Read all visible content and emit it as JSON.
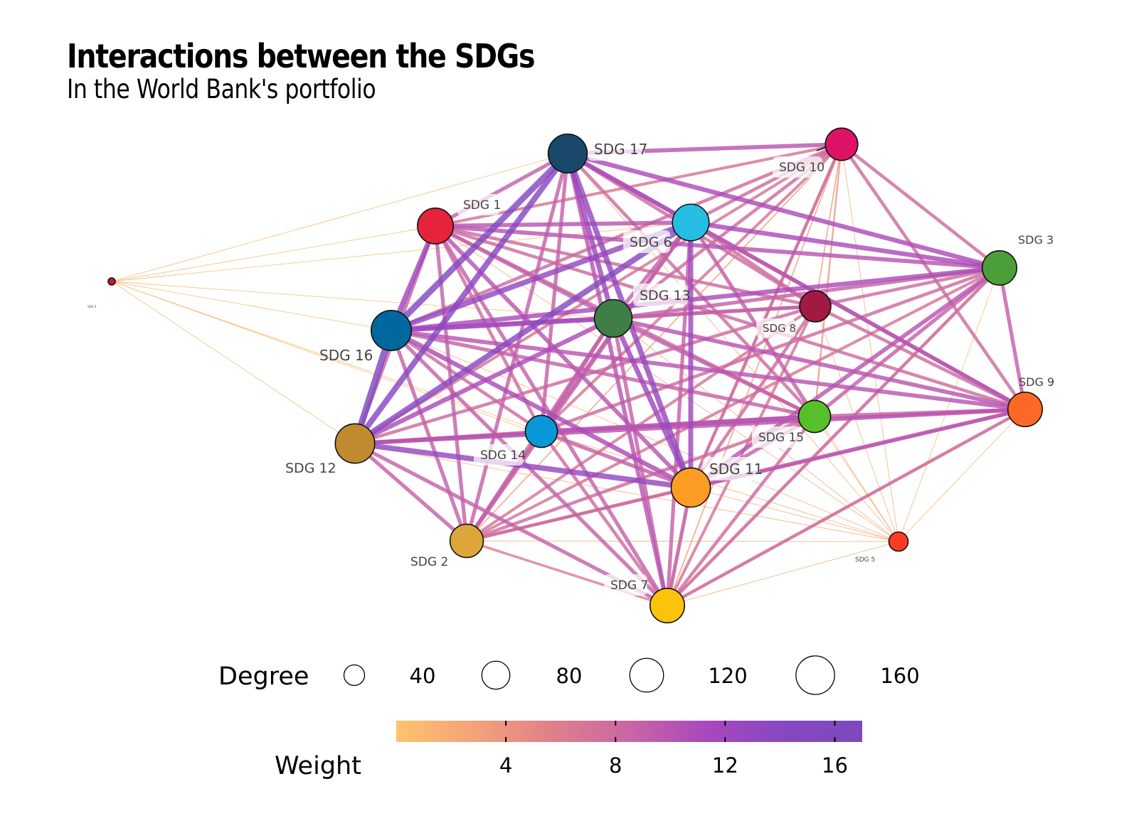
{
  "title": "Interactions between the SDGs",
  "subtitle": "In the World Bank's portfolio",
  "nodes": [
    {
      "id": "sdg17",
      "label": "SDG 17",
      "color": "#19486A",
      "degree": 146
    },
    {
      "id": "sdg10",
      "label": "SDG 10",
      "color": "#DD1367",
      "degree": 98
    },
    {
      "id": "sdg1",
      "label": "SDG 1",
      "color": "#E5243B",
      "degree": 122
    },
    {
      "id": "sdg6",
      "label": "SDG 6",
      "color": "#26BDE2",
      "degree": 128
    },
    {
      "id": "sdg3",
      "label": "SDG 3",
      "color": "#4C9F38",
      "degree": 112
    },
    {
      "id": "sdg4",
      "label": "SDG 4",
      "color": "#C5192D",
      "degree": 4
    },
    {
      "id": "sdg16",
      "label": "SDG 16",
      "color": "#00689D",
      "degree": 156
    },
    {
      "id": "sdg13",
      "label": "SDG 13",
      "color": "#3F7E44",
      "degree": 136
    },
    {
      "id": "sdg8",
      "label": "SDG 8",
      "color": "#A21942",
      "degree": 90
    },
    {
      "id": "sdg9",
      "label": "SDG 9",
      "color": "#FD6925",
      "degree": 112
    },
    {
      "id": "sdg15",
      "label": "SDG 15",
      "color": "#56C02B",
      "degree": 96
    },
    {
      "id": "sdg14",
      "label": "SDG 14",
      "color": "#0A97D9",
      "degree": 96
    },
    {
      "id": "sdg12",
      "label": "SDG 12",
      "color": "#BF8B2E",
      "degree": 150
    },
    {
      "id": "sdg11",
      "label": "SDG 11",
      "color": "#FD9D24",
      "degree": 148
    },
    {
      "id": "sdg2",
      "label": "SDG 2",
      "color": "#DDA63A",
      "degree": 104
    },
    {
      "id": "sdg5",
      "label": "SDG 5",
      "color": "#FF3A21",
      "degree": 30
    },
    {
      "id": "sdg7",
      "label": "SDG 7",
      "color": "#FCC30B",
      "degree": 112
    }
  ],
  "legend": {
    "degree": {
      "title": "Degree",
      "values": [
        40,
        80,
        120,
        160
      ]
    },
    "weight": {
      "title": "Weight",
      "ticks": [
        4,
        8,
        12,
        16
      ],
      "range": [
        0,
        17
      ],
      "colors": [
        "#FEC46C",
        "#F4A27A",
        "#E0808A",
        "#C966A4",
        "#A848BC",
        "#8748C2",
        "#7A4ABC"
      ]
    }
  }
}
